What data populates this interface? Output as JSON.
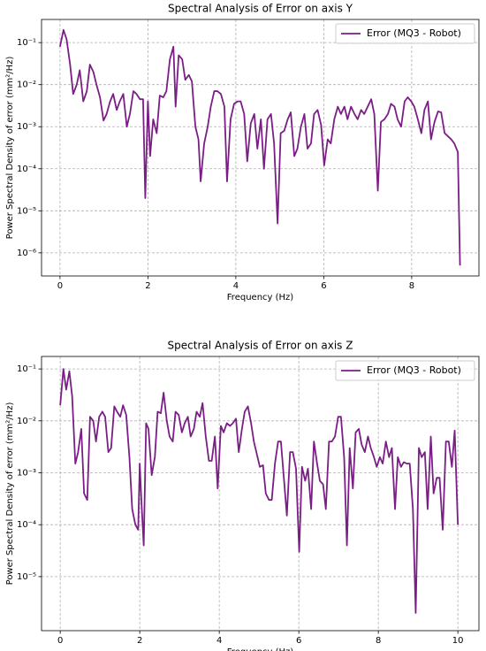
{
  "chart_data": [
    {
      "type": "line",
      "title": "Spectral Analysis of Error on axis Y",
      "x_label": "Frequency (Hz)",
      "y_label": "Power Spectral Density of error (mm²/Hz)",
      "log_y": true,
      "grid": true,
      "legend": "upper right",
      "xlim": [
        -0.42,
        9.53
      ],
      "ylim": [
        2.82e-07,
        0.355
      ],
      "xticks": [
        0,
        2,
        4,
        6,
        8
      ],
      "yticks": [
        {
          "value": 1e-06,
          "label": "10⁻⁶"
        },
        {
          "value": 1e-05,
          "label": "10⁻⁵"
        },
        {
          "value": 0.0001,
          "label": "10⁻⁴"
        },
        {
          "value": 0.001,
          "label": "10⁻³"
        },
        {
          "value": 0.01,
          "label": "10⁻²"
        },
        {
          "value": 0.1,
          "label": "10⁻¹"
        }
      ],
      "x": [
        0,
        0.08,
        0.15,
        0.23,
        0.3,
        0.38,
        0.45,
        0.53,
        0.61,
        0.68,
        0.76,
        0.83,
        0.91,
        0.99,
        1.06,
        1.14,
        1.21,
        1.29,
        1.36,
        1.44,
        1.52,
        1.59,
        1.67,
        1.74,
        1.82,
        1.89,
        1.94,
        2.0,
        2.05,
        2.12,
        2.2,
        2.27,
        2.35,
        2.42,
        2.5,
        2.58,
        2.63,
        2.7,
        2.78,
        2.85,
        2.93,
        3.0,
        3.08,
        3.15,
        3.2,
        3.28,
        3.36,
        3.43,
        3.51,
        3.58,
        3.66,
        3.74,
        3.8,
        3.88,
        3.96,
        4.04,
        4.11,
        4.19,
        4.26,
        4.34,
        4.42,
        4.49,
        4.57,
        4.64,
        4.72,
        4.8,
        4.87,
        4.95,
        5.02,
        5.1,
        5.18,
        5.25,
        5.33,
        5.4,
        5.48,
        5.56,
        5.63,
        5.71,
        5.78,
        5.86,
        5.94,
        6.01,
        6.09,
        6.16,
        6.24,
        6.32,
        6.39,
        6.47,
        6.54,
        6.62,
        6.7,
        6.77,
        6.85,
        6.92,
        7.0,
        7.08,
        7.15,
        7.23,
        7.3,
        7.38,
        7.46,
        7.53,
        7.61,
        7.68,
        7.76,
        7.84,
        7.91,
        7.99,
        8.06,
        8.14,
        8.22,
        8.29,
        8.37,
        8.44,
        8.52,
        8.6,
        8.67,
        8.75,
        8.82,
        8.9,
        8.97,
        9.05,
        9.1
      ],
      "series": [
        {
          "name": "Error (MQ3 - Robot)",
          "color": "#7a1e86",
          "values": [
            0.08,
            0.2,
            0.12,
            0.03,
            0.006,
            0.01,
            0.022,
            0.004,
            0.007,
            0.03,
            0.02,
            0.01,
            0.005,
            0.0014,
            0.002,
            0.004,
            0.006,
            0.0025,
            0.004,
            0.006,
            0.001,
            0.002,
            0.007,
            0.006,
            0.0045,
            0.0045,
            2e-05,
            0.004,
            0.0002,
            0.0015,
            0.0007,
            0.0055,
            0.005,
            0.007,
            0.04,
            0.08,
            0.003,
            0.05,
            0.04,
            0.013,
            0.017,
            0.012,
            0.001,
            0.0005,
            5e-05,
            0.0004,
            0.001,
            0.003,
            0.007,
            0.007,
            0.006,
            0.003,
            5e-05,
            0.0015,
            0.0035,
            0.004,
            0.004,
            0.002,
            0.00015,
            0.0012,
            0.002,
            0.0003,
            0.0015,
            0.0001,
            0.0015,
            0.002,
            0.0004,
            5e-06,
            0.0007,
            0.0008,
            0.0015,
            0.0022,
            0.0002,
            0.0003,
            0.001,
            0.002,
            0.0003,
            0.0004,
            0.002,
            0.0025,
            0.0011,
            0.00012,
            0.0005,
            0.0004,
            0.0015,
            0.003,
            0.002,
            0.003,
            0.0015,
            0.003,
            0.002,
            0.0015,
            0.0025,
            0.002,
            0.003,
            0.0045,
            0.002,
            3e-05,
            0.0013,
            0.0015,
            0.002,
            0.0035,
            0.003,
            0.0015,
            0.001,
            0.004,
            0.005,
            0.004,
            0.003,
            0.0015,
            0.0007,
            0.0025,
            0.004,
            0.0005,
            0.0013,
            0.0023,
            0.0022,
            0.0007,
            0.0006,
            0.0005,
            0.0004,
            0.00025,
            5e-07
          ]
        }
      ]
    },
    {
      "type": "line",
      "title": "Spectral Analysis of Error on axis Z",
      "x_label": "Frequency (Hz)",
      "y_label": "Power Spectral Density of error (mm²/Hz)",
      "log_y": true,
      "grid": true,
      "legend": "upper right",
      "xlim": [
        -0.47,
        10.53
      ],
      "ylim": [
        9.1e-07,
        0.174
      ],
      "xticks": [
        0,
        2,
        4,
        6,
        8,
        10
      ],
      "yticks": [
        {
          "value": 1e-05,
          "label": "10⁻⁵"
        },
        {
          "value": 0.0001,
          "label": "10⁻⁴"
        },
        {
          "value": 0.001,
          "label": "10⁻³"
        },
        {
          "value": 0.01,
          "label": "10⁻²"
        },
        {
          "value": 0.1,
          "label": "10⁻¹"
        }
      ],
      "x": [
        0,
        0.08,
        0.15,
        0.23,
        0.3,
        0.38,
        0.45,
        0.53,
        0.6,
        0.68,
        0.75,
        0.83,
        0.9,
        0.98,
        1.06,
        1.13,
        1.21,
        1.28,
        1.36,
        1.43,
        1.51,
        1.58,
        1.66,
        1.74,
        1.81,
        1.89,
        1.96,
        2.0,
        2.04,
        2.1,
        2.16,
        2.22,
        2.3,
        2.38,
        2.45,
        2.53,
        2.6,
        2.68,
        2.75,
        2.83,
        2.9,
        2.98,
        3.06,
        3.13,
        3.21,
        3.28,
        3.36,
        3.43,
        3.51,
        3.58,
        3.66,
        3.74,
        3.81,
        3.89,
        3.96,
        4.04,
        4.11,
        4.19,
        4.27,
        4.34,
        4.42,
        4.49,
        4.57,
        4.64,
        4.72,
        4.8,
        4.87,
        4.95,
        5.02,
        5.1,
        5.17,
        5.25,
        5.32,
        5.4,
        5.48,
        5.55,
        5.63,
        5.7,
        5.78,
        5.85,
        5.93,
        6.01,
        6.08,
        6.16,
        6.23,
        6.31,
        6.38,
        6.46,
        6.53,
        6.61,
        6.68,
        6.76,
        6.83,
        6.91,
        6.99,
        7.06,
        7.14,
        7.21,
        7.28,
        7.36,
        7.43,
        7.51,
        7.58,
        7.66,
        7.74,
        7.81,
        7.89,
        7.96,
        8.04,
        8.11,
        8.19,
        8.27,
        8.34,
        8.42,
        8.49,
        8.57,
        8.64,
        8.72,
        8.79,
        8.87,
        8.94,
        9.02,
        9.09,
        9.17,
        9.24,
        9.32,
        9.39,
        9.47,
        9.54,
        9.62,
        9.7,
        9.77,
        9.85,
        9.92,
        10
      ],
      "series": [
        {
          "name": "Error (MQ3 - Robot)",
          "color": "#7a1e86",
          "values": [
            0.02,
            0.1,
            0.04,
            0.09,
            0.03,
            0.0015,
            0.0025,
            0.007,
            0.0004,
            0.0003,
            0.012,
            0.01,
            0.004,
            0.012,
            0.015,
            0.012,
            0.0025,
            0.003,
            0.019,
            0.015,
            0.012,
            0.02,
            0.013,
            0.002,
            0.0002,
            0.0001,
            8e-05,
            0.0015,
            0.0003,
            4e-05,
            0.009,
            0.007,
            0.0009,
            0.002,
            0.015,
            0.014,
            0.035,
            0.01,
            0.005,
            0.004,
            0.015,
            0.013,
            0.006,
            0.009,
            0.012,
            0.005,
            0.007,
            0.015,
            0.012,
            0.022,
            0.005,
            0.0017,
            0.0017,
            0.005,
            0.0005,
            0.008,
            0.006,
            0.009,
            0.008,
            0.009,
            0.011,
            0.0025,
            0.007,
            0.015,
            0.019,
            0.009,
            0.004,
            0.0022,
            0.0013,
            0.0014,
            0.0004,
            0.0003,
            0.0003,
            0.0015,
            0.004,
            0.004,
            0.0007,
            0.00015,
            0.0025,
            0.0025,
            0.0012,
            3e-05,
            0.0013,
            0.0007,
            0.0012,
            0.0002,
            0.004,
            0.0015,
            0.0007,
            0.0006,
            0.0002,
            0.004,
            0.004,
            0.005,
            0.012,
            0.012,
            0.002,
            4e-05,
            0.003,
            0.0005,
            0.006,
            0.007,
            0.0035,
            0.0025,
            0.005,
            0.003,
            0.002,
            0.0013,
            0.002,
            0.0015,
            0.004,
            0.002,
            0.003,
            0.0002,
            0.002,
            0.0013,
            0.0016,
            0.0015,
            0.0015,
            0.0002,
            2e-06,
            0.003,
            0.002,
            0.0025,
            0.0002,
            0.005,
            0.0004,
            0.0008,
            0.0008,
            8e-05,
            0.004,
            0.004,
            0.0013,
            0.0065,
            0.0001
          ]
        }
      ]
    }
  ]
}
